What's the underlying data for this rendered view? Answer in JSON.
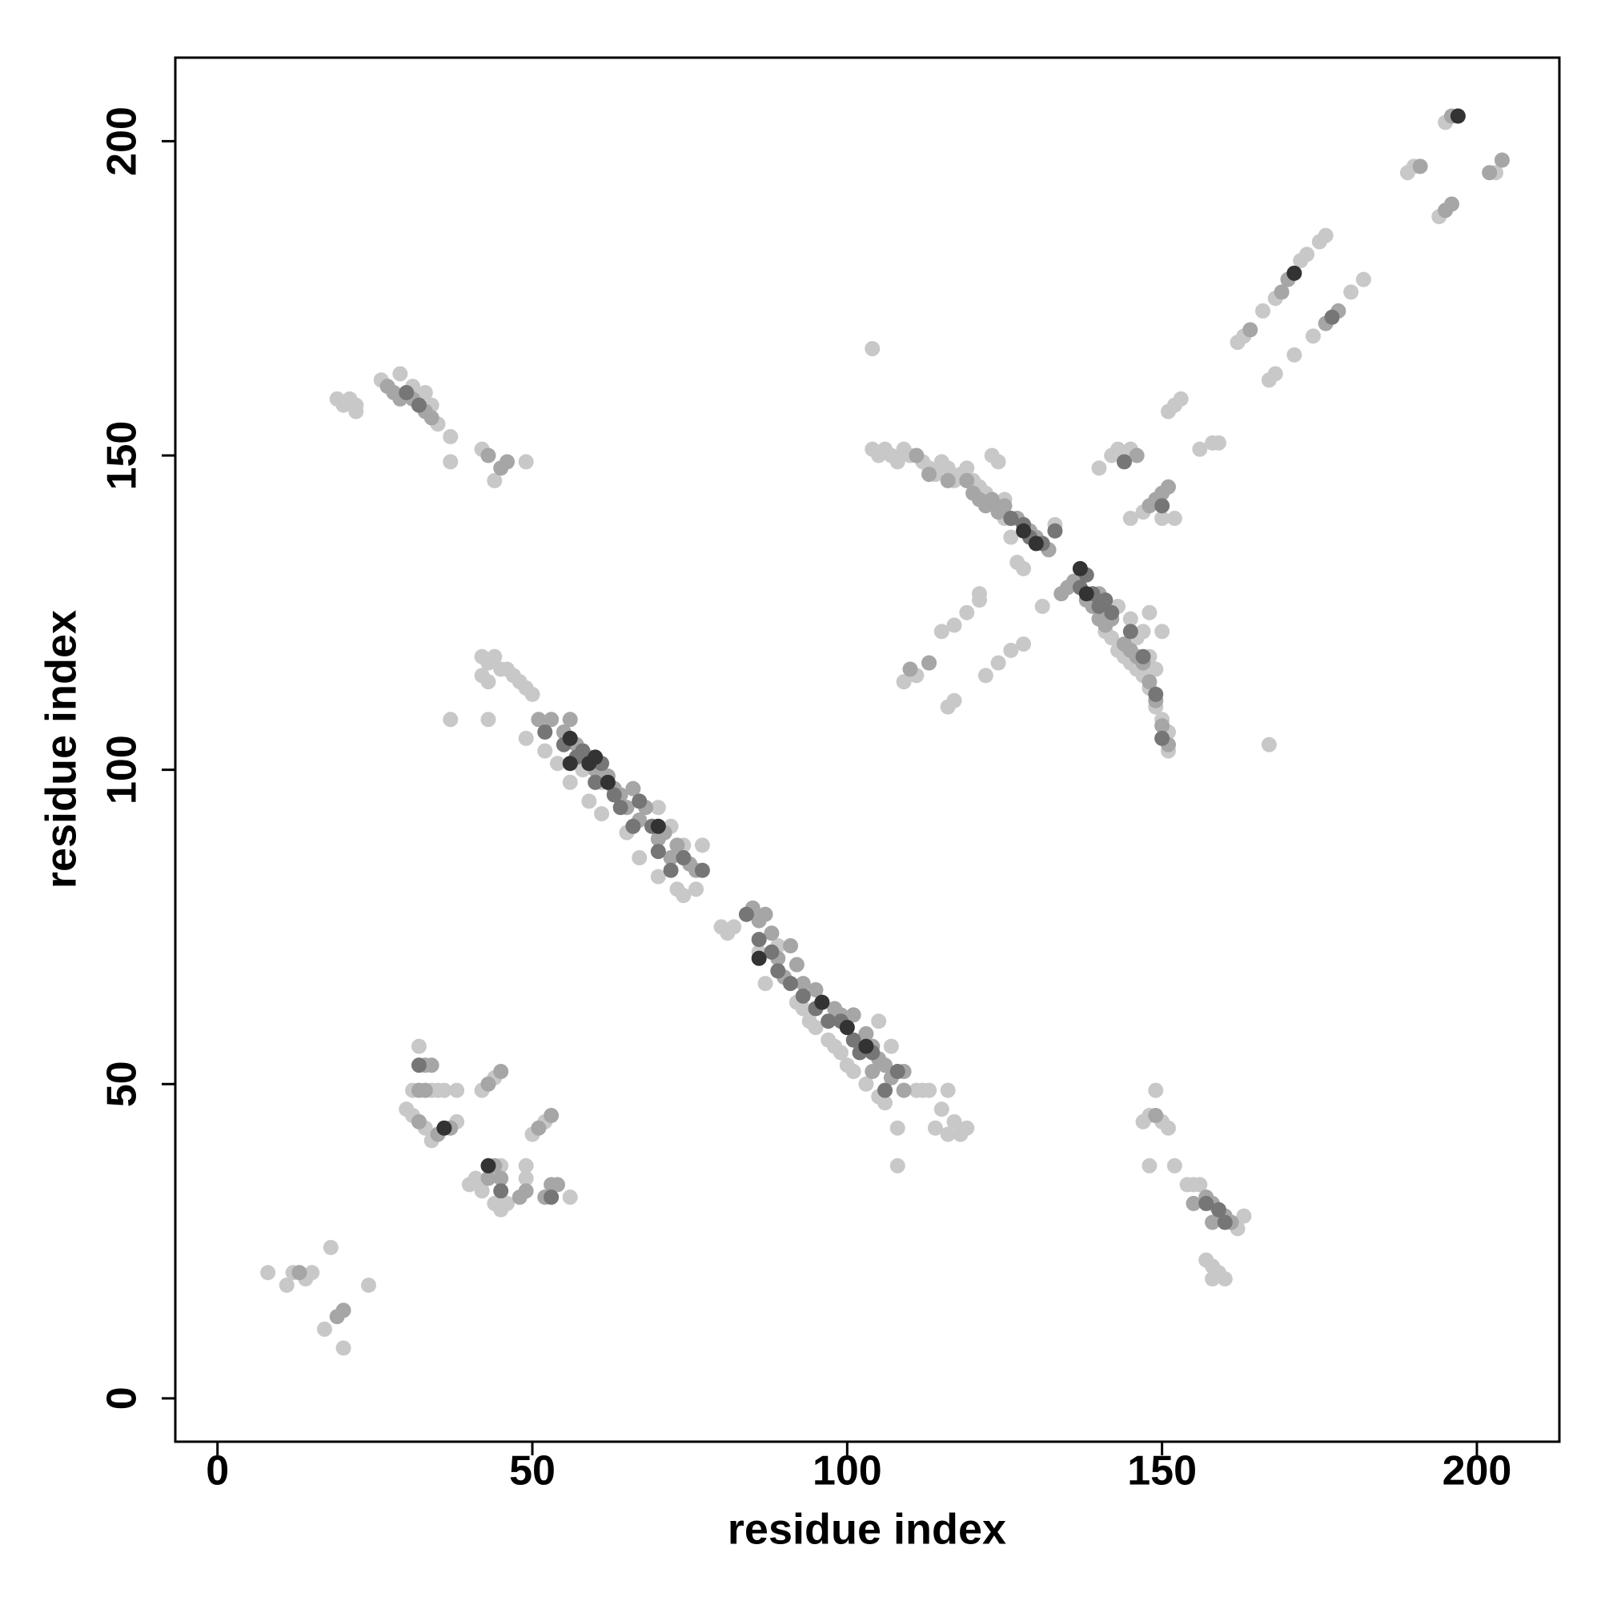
{
  "chart_data": {
    "type": "scatter",
    "x_label": "residue index",
    "y_label": "residue index",
    "xlim": [
      -6.7,
      213.1
    ],
    "ylim": [
      -6.9,
      213.3
    ],
    "xticks": [
      0,
      50,
      100,
      150,
      200
    ],
    "yticks": [
      0,
      50,
      100,
      150,
      200
    ],
    "grid": false,
    "series": [
      {
        "color": "#c8c8c8",
        "x": [
          8,
          11,
          12,
          15,
          18,
          17,
          20,
          24,
          14,
          30,
          31,
          34,
          35,
          36,
          38,
          32,
          33,
          34,
          38,
          42,
          44,
          40,
          41,
          42,
          44,
          45,
          46,
          49,
          49,
          50,
          52,
          56,
          45,
          31,
          42,
          43,
          44,
          45,
          46,
          47,
          48,
          49,
          42,
          43,
          37,
          43,
          49,
          52,
          54,
          56,
          59,
          61,
          65,
          67,
          70,
          73,
          74,
          76,
          50,
          58,
          61,
          70,
          72,
          74,
          77,
          80,
          81,
          82,
          84,
          86,
          87,
          89,
          92,
          93,
          94,
          95,
          97,
          98,
          99,
          100,
          101,
          103,
          105,
          106,
          107,
          108,
          108,
          105,
          111,
          112,
          113,
          114,
          115,
          116,
          117,
          118,
          119,
          116,
          19,
          20,
          21,
          22,
          22,
          26,
          29,
          31,
          33,
          34,
          35,
          37,
          37,
          44,
          49,
          42,
          147,
          148,
          149,
          148,
          152,
          154,
          155,
          156,
          162,
          163,
          157,
          158,
          158,
          159,
          160,
          150,
          151,
          104,
          105,
          106,
          107,
          108,
          109,
          110,
          112,
          113,
          114,
          115,
          116,
          117,
          118,
          119,
          120,
          121,
          122,
          123,
          124,
          125,
          121,
          125,
          126,
          127,
          128,
          133,
          131,
          115,
          117,
          119,
          121,
          109,
          111,
          113,
          116,
          117,
          122,
          124,
          126,
          128,
          140,
          142,
          143,
          145,
          145,
          147,
          150,
          152,
          148,
          150,
          151,
          152,
          153,
          156,
          158,
          159,
          104,
          167,
          141,
          142,
          143,
          144,
          145,
          146,
          147,
          148,
          149,
          150,
          151,
          151,
          146,
          147,
          143,
          145,
          149,
          148,
          162,
          163,
          166,
          168,
          172,
          173,
          175,
          176,
          167,
          168,
          171,
          174,
          180,
          182,
          189,
          190,
          194,
          195,
          203
        ],
        "values": [
          20,
          18,
          20,
          20,
          24,
          11,
          8,
          18,
          19,
          46,
          49,
          49,
          49,
          49,
          49,
          56,
          43,
          41,
          44,
          49,
          51,
          34,
          35,
          33,
          31,
          30,
          31,
          35,
          37,
          42,
          44,
          32,
          37,
          45,
          118,
          117,
          118,
          116,
          116,
          115,
          114,
          113,
          115,
          114,
          108,
          108,
          105,
          103,
          101,
          98,
          95,
          93,
          90,
          86,
          83,
          81,
          80,
          81,
          112,
          100,
          98,
          94,
          91,
          88,
          88,
          75,
          74,
          75,
          77,
          71,
          66,
          72,
          63,
          62,
          60,
          59,
          57,
          56,
          55,
          53,
          52,
          50,
          48,
          47,
          56,
          43,
          37,
          60,
          49,
          49,
          49,
          43,
          46,
          49,
          44,
          42,
          43,
          42,
          159,
          158,
          159,
          158,
          157,
          162,
          163,
          161,
          160,
          158,
          155,
          153,
          149,
          146,
          149,
          151,
          44,
          45,
          49,
          37,
          37,
          34,
          34,
          34,
          27,
          29,
          22,
          21,
          19,
          20,
          19,
          44,
          43,
          151,
          150,
          151,
          150,
          149,
          151,
          150,
          149,
          148,
          147,
          149,
          148,
          146,
          147,
          148,
          146,
          145,
          144,
          150,
          149,
          143,
          128,
          140,
          137,
          133,
          132,
          139,
          126,
          122,
          123,
          125,
          127,
          114,
          115,
          117,
          110,
          111,
          115,
          117,
          119,
          120,
          148,
          150,
          151,
          151,
          140,
          141,
          140,
          140,
          125,
          122,
          157,
          158,
          159,
          151,
          152,
          152,
          167,
          104,
          122,
          121,
          119,
          118,
          117,
          116,
          115,
          113,
          110,
          108,
          106,
          103,
          121,
          122,
          126,
          124,
          116,
          118,
          168,
          169,
          173,
          175,
          181,
          182,
          184,
          185,
          162,
          163,
          166,
          169,
          176,
          178,
          195,
          196,
          188,
          203,
          195
        ]
      },
      {
        "color": "#a6a6a6",
        "x": [
          13,
          19,
          20,
          32,
          33,
          33,
          34,
          32,
          35,
          37,
          43,
          45,
          43,
          44,
          45,
          48,
          49,
          51,
          53,
          53,
          54,
          52,
          51,
          53,
          55,
          57,
          56,
          59,
          60,
          62,
          63,
          64,
          66,
          65,
          67,
          68,
          70,
          71,
          72,
          73,
          75,
          76,
          85,
          86,
          87,
          88,
          89,
          91,
          90,
          92,
          93,
          95,
          96,
          98,
          99,
          100,
          101,
          103,
          104,
          105,
          104,
          106,
          107,
          109,
          109,
          27,
          28,
          29,
          31,
          33,
          34,
          43,
          45,
          46,
          149,
          155,
          157,
          158,
          158,
          160,
          161,
          111,
          113,
          116,
          119,
          120,
          121,
          122,
          123,
          124,
          125,
          127,
          129,
          130,
          132,
          134,
          135,
          136,
          138,
          139,
          140,
          141,
          140,
          142,
          144,
          145,
          146,
          147,
          148,
          149,
          150,
          151,
          110,
          113,
          146,
          148,
          149,
          150,
          151,
          164,
          169,
          170,
          176,
          178,
          191,
          195,
          196,
          196,
          197,
          202,
          204
        ],
        "values": [
          20,
          13,
          14,
          49,
          49,
          53,
          53,
          44,
          42,
          43,
          50,
          52,
          35,
          37,
          35,
          32,
          33,
          43,
          45,
          34,
          34,
          32,
          108,
          108,
          106,
          104,
          108,
          102,
          100,
          99,
          97,
          96,
          97,
          94,
          92,
          94,
          89,
          90,
          86,
          88,
          85,
          84,
          78,
          76,
          77,
          74,
          70,
          72,
          67,
          69,
          66,
          65,
          63,
          62,
          61,
          59,
          61,
          58,
          56,
          54,
          52,
          53,
          51,
          52,
          49,
          161,
          160,
          159,
          159,
          157,
          156,
          150,
          148,
          149,
          45,
          31,
          32,
          31,
          28,
          29,
          28,
          150,
          147,
          146,
          146,
          144,
          143,
          142,
          143,
          141,
          142,
          140,
          138,
          137,
          135,
          128,
          129,
          130,
          127,
          126,
          124,
          123,
          128,
          124,
          120,
          119,
          118,
          117,
          114,
          111,
          107,
          104,
          116,
          117,
          150,
          142,
          143,
          144,
          145,
          170,
          176,
          178,
          171,
          173,
          196,
          189,
          190,
          204,
          204,
          195,
          197
        ]
      },
      {
        "color": "#767676",
        "x": [
          32,
          45,
          53,
          52,
          55,
          57,
          58,
          60,
          61,
          63,
          64,
          66,
          67,
          69,
          70,
          72,
          74,
          77,
          84,
          86,
          88,
          89,
          91,
          93,
          95,
          97,
          99,
          101,
          102,
          104,
          106,
          108,
          30,
          32,
          157,
          159,
          160,
          126,
          128,
          129,
          131,
          133,
          137,
          138,
          139,
          140,
          141,
          142,
          145,
          147,
          149,
          150,
          144,
          150,
          177
        ],
        "values": [
          53,
          33,
          32,
          106,
          104,
          102,
          103,
          98,
          101,
          96,
          94,
          91,
          95,
          91,
          87,
          84,
          86,
          84,
          77,
          73,
          71,
          68,
          66,
          64,
          62,
          60,
          60,
          57,
          55,
          55,
          49,
          52,
          160,
          158,
          31,
          30,
          28,
          140,
          139,
          137,
          136,
          138,
          129,
          131,
          128,
          126,
          127,
          125,
          122,
          118,
          112,
          105,
          149,
          142,
          172
        ]
      },
      {
        "color": "#333333",
        "x": [
          36,
          43,
          56,
          59,
          62,
          86,
          96,
          100,
          103,
          56,
          60,
          70,
          130,
          138,
          128,
          137,
          171,
          197
        ],
        "values": [
          43,
          37,
          105,
          101,
          98,
          70,
          63,
          59,
          56,
          101,
          102,
          91,
          136,
          128,
          138,
          132,
          179,
          204
        ]
      }
    ]
  }
}
